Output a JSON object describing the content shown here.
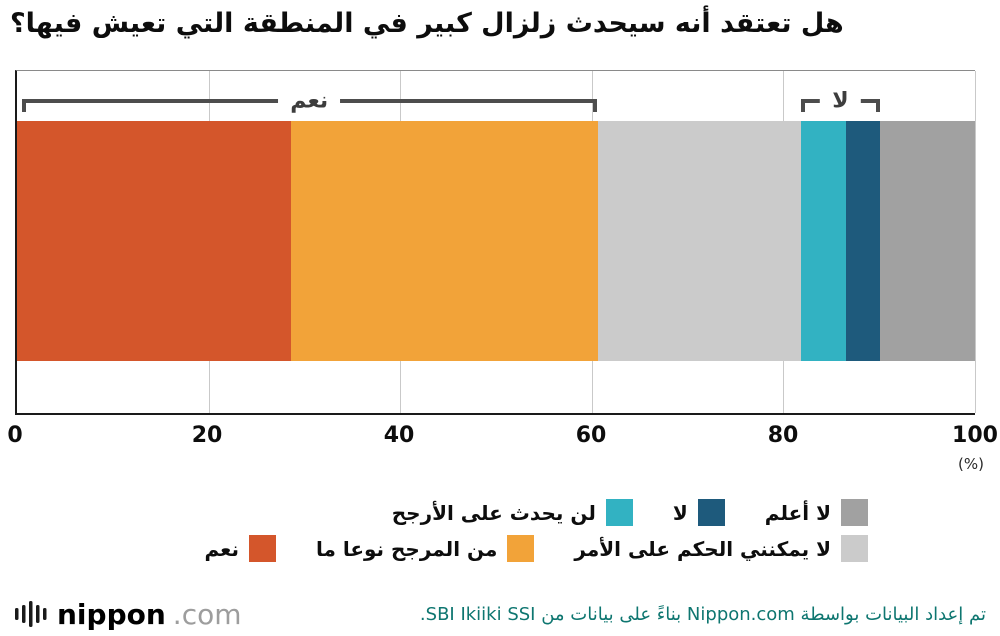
{
  "chart_data": {
    "type": "bar",
    "subtype": "horizontal-stacked",
    "title": "هل تعتقد أنه سيحدث زلزال كبير في المنطقة التي تعيش فيها؟",
    "unit_label": "(%)",
    "xlim": [
      0,
      100
    ],
    "x_ticks": [
      0,
      20,
      40,
      60,
      80,
      100
    ],
    "grid": true,
    "segments": [
      {
        "label": "نعم",
        "value": 28.6,
        "color": "#d4562b"
      },
      {
        "label": "من المرجح نوعا ما",
        "value": 32.0,
        "color": "#f2a339"
      },
      {
        "label": "لا يمكنني الحكم على الأمر",
        "value": 21.2,
        "color": "#cbcbcb"
      },
      {
        "label": "لن يحدث على الأرجح",
        "value": 4.7,
        "color": "#32b2c2"
      },
      {
        "label": "لا",
        "value": 3.6,
        "color": "#1e5a7c"
      },
      {
        "label": "لا أعلم",
        "value": 9.9,
        "color": "#a1a1a1"
      }
    ],
    "brackets": [
      {
        "label": "نعم",
        "from": 0.5,
        "to": 60.5
      },
      {
        "label": "لا",
        "from": 81.8,
        "to": 90.1
      }
    ]
  },
  "legend": {
    "rows": [
      [
        {
          "label": "لا أعلم",
          "color": "#a1a1a1"
        },
        {
          "label": "لا",
          "color": "#1e5a7c"
        },
        {
          "label": "لن يحدث على الأرجح",
          "color": "#32b2c2"
        }
      ],
      [
        {
          "label": "لا يمكنني الحكم على الأمر",
          "color": "#cbcbcb"
        },
        {
          "label": "من المرجح نوعا ما",
          "color": "#f2a339"
        },
        {
          "label": "نعم",
          "color": "#d4562b"
        }
      ]
    ]
  },
  "footer": {
    "logo_main": "nippon",
    "logo_suffix": ".com",
    "attribution": "تم إعداد البيانات بواسطة Nippon.com بناءً على بيانات من SBI Ikiiki SSI."
  }
}
